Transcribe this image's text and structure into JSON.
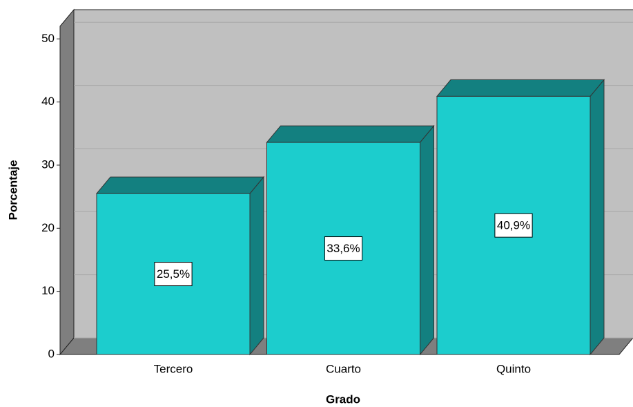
{
  "chart_data": {
    "type": "bar3d",
    "x_label": "Grado",
    "y_label": "Porcentaje",
    "categories": [
      "Tercero",
      "Cuarto",
      "Quinto"
    ],
    "values": [
      25.5,
      33.6,
      40.9
    ],
    "value_labels": [
      "25,5%",
      "33,6%",
      "40,9%"
    ],
    "color": "#1ccdcd",
    "ylim": [
      0,
      52
    ],
    "yticks": [
      0,
      10,
      20,
      30,
      40,
      50
    ],
    "grid": true
  }
}
